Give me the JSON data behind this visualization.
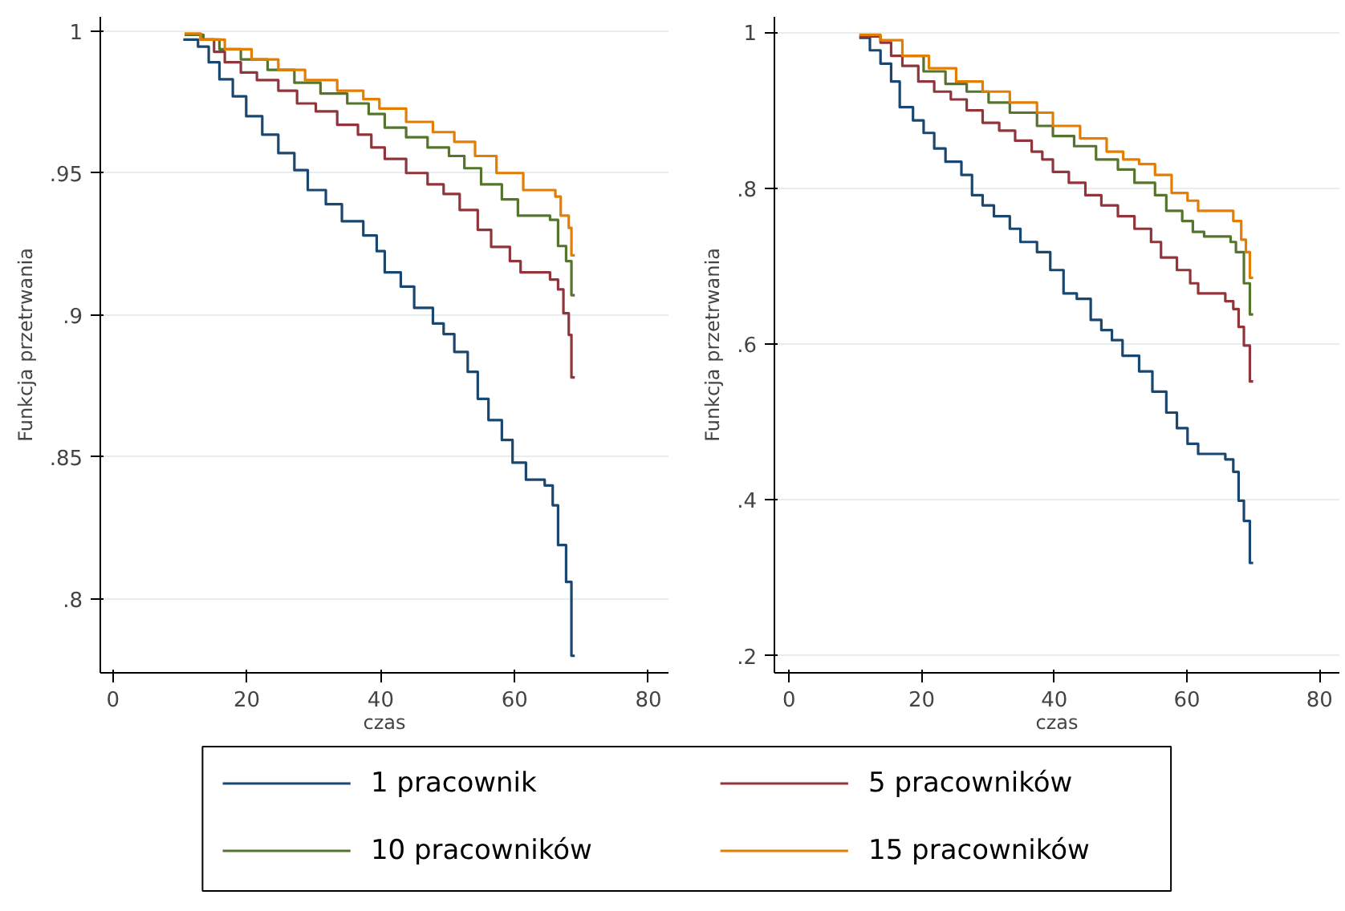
{
  "chart_data": [
    {
      "type": "step",
      "xlabel": "czas",
      "ylabel": "Funkcja przetrwania",
      "xlim": [
        -1.9,
        83
      ],
      "ylim": [
        0.774,
        1.005
      ],
      "xticks": [
        0,
        20,
        40,
        60,
        80
      ],
      "yticks": [
        {
          "value": 0.8,
          "label": ".8"
        },
        {
          "value": 0.85,
          "label": ".85"
        },
        {
          "value": 0.9,
          "label": ".9"
        },
        {
          "value": 0.95,
          "label": ".95"
        },
        {
          "value": 1,
          "label": "1"
        }
      ],
      "grid": "y",
      "legend": "bottom",
      "series": [
        {
          "name": "1 pracownik",
          "color": "#1a476f",
          "x": [
            10.5,
            12.7,
            14.3,
            15.9,
            17.9,
            19.9,
            22.3,
            24.7,
            27.1,
            29.1,
            31.8,
            34.2,
            37.4,
            39.4,
            40.6,
            43,
            45,
            47.8,
            49.4,
            51,
            53,
            54.5,
            56.1,
            58.1,
            59.7,
            61.7,
            64.5,
            65.7,
            66.5,
            67.7,
            68.5,
            69
          ],
          "values": [
            0.997,
            0.9945,
            0.989,
            0.983,
            0.977,
            0.97,
            0.9635,
            0.957,
            0.951,
            0.944,
            0.939,
            0.933,
            0.928,
            0.9225,
            0.915,
            0.91,
            0.9025,
            0.897,
            0.8933,
            0.887,
            0.88,
            0.8705,
            0.863,
            0.856,
            0.848,
            0.842,
            0.84,
            0.833,
            0.819,
            0.806,
            0.78,
            0.78
          ]
        },
        {
          "name": "5 pracowników",
          "color": "#90353b",
          "x": [
            10.7,
            13.1,
            15.1,
            16.7,
            19.1,
            21.5,
            24.7,
            27.5,
            30.3,
            33.5,
            36.6,
            38.6,
            40.6,
            43.8,
            47,
            49.4,
            51.8,
            54.5,
            56.5,
            59.3,
            60.9,
            65.3,
            66.5,
            67.3,
            68.1,
            68.5,
            69
          ],
          "values": [
            0.9987,
            0.997,
            0.9927,
            0.989,
            0.9854,
            0.9827,
            0.979,
            0.9745,
            0.9717,
            0.967,
            0.9635,
            0.959,
            0.955,
            0.95,
            0.946,
            0.9426,
            0.937,
            0.93,
            0.924,
            0.919,
            0.915,
            0.9125,
            0.909,
            0.9006,
            0.893,
            0.878,
            0.878
          ]
        },
        {
          "name": "10 pracowników",
          "color": "#55752f",
          "x": [
            10.7,
            13.5,
            15.9,
            19.1,
            23.1,
            27.1,
            31,
            35,
            38.2,
            40.6,
            43.8,
            47,
            50.2,
            52.5,
            55,
            58.1,
            60.5,
            65.3,
            66.5,
            67.7,
            68.5,
            69
          ],
          "values": [
            0.9987,
            0.997,
            0.9936,
            0.99,
            0.9863,
            0.9818,
            0.978,
            0.9745,
            0.9708,
            0.966,
            0.9626,
            0.959,
            0.956,
            0.9517,
            0.946,
            0.9407,
            0.935,
            0.9335,
            0.9243,
            0.919,
            0.907,
            0.907
          ]
        },
        {
          "name": "15 pracowników",
          "color": "#e37e00",
          "x": [
            10.7,
            13.1,
            16.7,
            20.7,
            24.7,
            28.7,
            33.5,
            37.4,
            39.8,
            43.8,
            47.8,
            51,
            54.1,
            57.3,
            61.3,
            66.1,
            66.9,
            68.1,
            68.5,
            69
          ],
          "values": [
            0.9991,
            0.997,
            0.9936,
            0.99,
            0.9863,
            0.9827,
            0.979,
            0.976,
            0.9727,
            0.968,
            0.9644,
            0.961,
            0.956,
            0.95,
            0.944,
            0.9417,
            0.935,
            0.9307,
            0.921,
            0.921
          ]
        }
      ]
    },
    {
      "type": "step",
      "xlabel": "czas",
      "ylabel": "Funkcja przetrwania",
      "xlim": [
        -2.2,
        83
      ],
      "ylim": [
        0.178,
        1.02
      ],
      "xticks": [
        0,
        20,
        40,
        60,
        80
      ],
      "yticks": [
        {
          "value": 0.2,
          "label": ".2"
        },
        {
          "value": 0.4,
          "label": ".4"
        },
        {
          "value": 0.6,
          "label": ".6"
        },
        {
          "value": 0.8,
          "label": ".8"
        },
        {
          "value": 1,
          "label": "1"
        }
      ],
      "grid": "y",
      "series": [
        {
          "color": "#1a476f",
          "x": [
            10.6,
            12.2,
            13.8,
            15.4,
            16.7,
            18.7,
            20.3,
            21.9,
            23.6,
            26,
            27.6,
            29.2,
            30.9,
            33.3,
            34.9,
            37.4,
            39.4,
            41.4,
            43.4,
            45.5,
            47.1,
            48.7,
            50.3,
            52.8,
            54.8,
            56.9,
            58.5,
            60.1,
            61.7,
            65.8,
            67,
            67.8,
            68.6,
            69.5,
            70
          ],
          "values": [
            0.993,
            0.977,
            0.96,
            0.937,
            0.904,
            0.887,
            0.871,
            0.851,
            0.834,
            0.817,
            0.791,
            0.778,
            0.764,
            0.748,
            0.731,
            0.718,
            0.695,
            0.665,
            0.658,
            0.631,
            0.618,
            0.605,
            0.585,
            0.565,
            0.539,
            0.512,
            0.492,
            0.472,
            0.459,
            0.452,
            0.436,
            0.399,
            0.373,
            0.319,
            0.319
          ]
        },
        {
          "color": "#90353b",
          "x": [
            10.6,
            13.8,
            15.4,
            17.1,
            19.5,
            21.9,
            24.4,
            26.8,
            29.2,
            31.7,
            34.1,
            36.6,
            38.2,
            39.8,
            42.2,
            44.7,
            47.1,
            49.6,
            52.1,
            54.6,
            56.1,
            58.5,
            60.5,
            61.7,
            65.8,
            67,
            67.8,
            68.6,
            69.5,
            70
          ],
          "values": [
            0.995,
            0.987,
            0.97,
            0.957,
            0.937,
            0.924,
            0.914,
            0.9,
            0.884,
            0.874,
            0.861,
            0.847,
            0.837,
            0.821,
            0.807,
            0.791,
            0.778,
            0.764,
            0.748,
            0.731,
            0.711,
            0.695,
            0.678,
            0.665,
            0.655,
            0.645,
            0.622,
            0.598,
            0.552,
            0.552
          ]
        },
        {
          "color": "#55752f",
          "x": [
            17.1,
            20.3,
            23.6,
            26.8,
            30.1,
            33.3,
            37.4,
            39.8,
            43,
            46.3,
            49.6,
            52.1,
            55.2,
            56.9,
            59.3,
            60.9,
            62.6,
            66.6,
            67.4,
            68.6,
            69.5,
            70
          ],
          "values": [
            0.97,
            0.95,
            0.934,
            0.924,
            0.91,
            0.897,
            0.88,
            0.867,
            0.854,
            0.837,
            0.824,
            0.807,
            0.791,
            0.771,
            0.758,
            0.744,
            0.738,
            0.731,
            0.718,
            0.678,
            0.638,
            0.638
          ]
        },
        {
          "color": "#e37e00",
          "x": [
            10.6,
            13.8,
            17.1,
            21.1,
            25.2,
            29.2,
            33.3,
            37.4,
            39.8,
            43.9,
            47.9,
            50.4,
            52.8,
            55.2,
            57.7,
            60.1,
            61.7,
            65,
            67,
            68.2,
            68.9,
            69.5,
            70
          ],
          "values": [
            0.997,
            0.99,
            0.97,
            0.954,
            0.937,
            0.924,
            0.91,
            0.897,
            0.88,
            0.864,
            0.847,
            0.837,
            0.831,
            0.817,
            0.794,
            0.784,
            0.771,
            0.771,
            0.758,
            0.734,
            0.718,
            0.685,
            0.685
          ]
        }
      ]
    }
  ]
}
